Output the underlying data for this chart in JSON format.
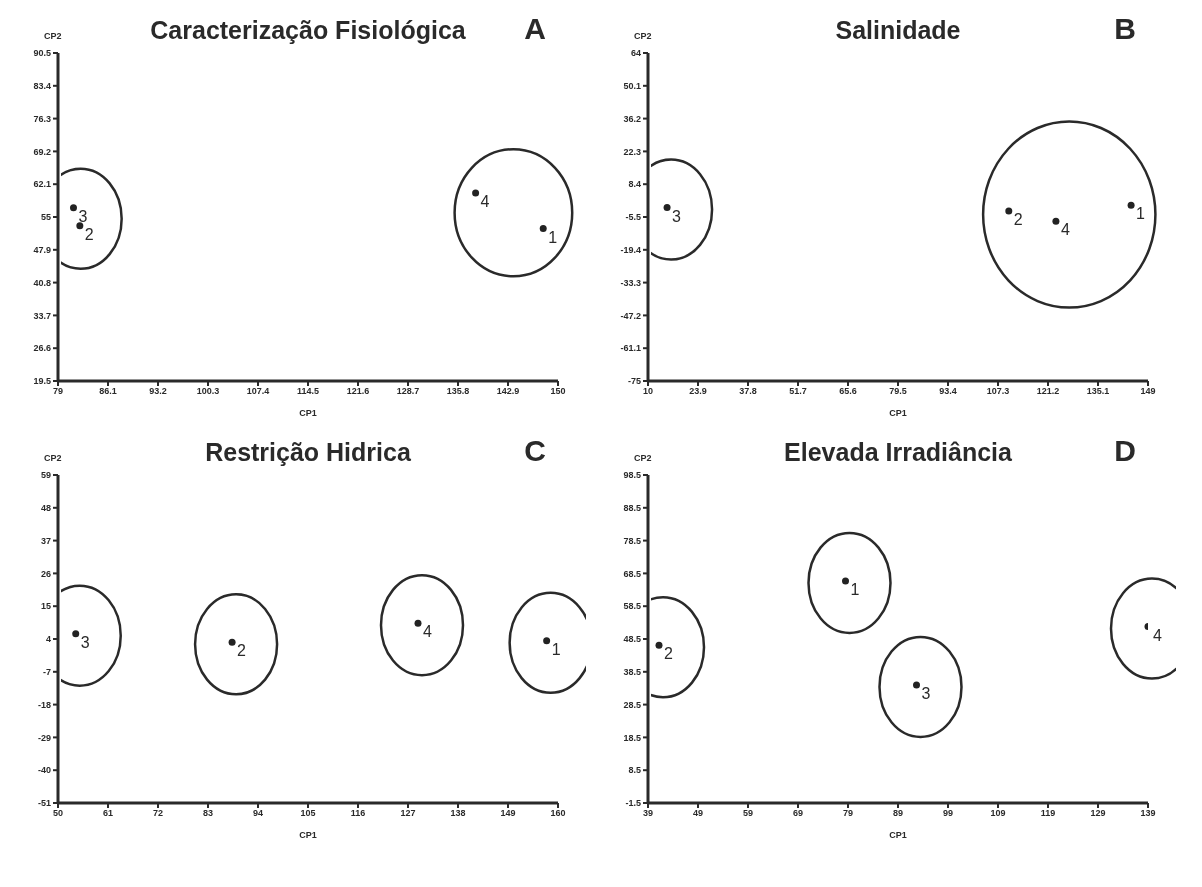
{
  "chart_data": [
    {
      "type": "scatter",
      "title": "Caracterização Fisiológica",
      "xlabel": "CP1",
      "ylabel": "CP2",
      "xlim": [
        79,
        150
      ],
      "xticks": [
        79,
        86.1,
        93.2,
        100.3,
        107.4,
        114.5,
        121.6,
        128.7,
        135.8,
        142.9,
        150
      ],
      "ylim": [
        19.5,
        90.5
      ],
      "yticks": [
        19.5,
        26.6,
        33.7,
        40.8,
        47.9,
        55,
        62.1,
        69.2,
        76.3,
        83.4,
        90.5
      ],
      "grid": false,
      "legend": false,
      "marker": "circle",
      "annotations": [
        "A",
        {
          "text": "3",
          "x": 81.2,
          "y": 57.0
        },
        {
          "text": "2",
          "x": 82.1,
          "y": 53.1
        },
        {
          "text": "4",
          "x": 138.3,
          "y": 60.2
        },
        {
          "text": "1",
          "x": 147.9,
          "y": 52.5
        }
      ],
      "series": [
        {
          "color": "#222222",
          "x": [
            81.2,
            82.1
          ],
          "values": [
            57.0,
            53.1
          ]
        },
        {
          "color": "#222222",
          "x": [
            138.3,
            147.9
          ],
          "values": [
            60.2,
            52.5
          ]
        }
      ]
    },
    {
      "type": "scatter",
      "title": "Salinidade",
      "xlabel": "CP1",
      "ylabel": "CP2",
      "xlim": [
        10,
        149
      ],
      "xticks": [
        10,
        23.9,
        37.8,
        51.7,
        65.6,
        79.5,
        93.4,
        107.3,
        121.2,
        135.1,
        149
      ],
      "ylim": [
        -75,
        64
      ],
      "yticks": [
        -75,
        -61.1,
        -47.2,
        -33.3,
        -19.4,
        -5.5,
        8.4,
        22.3,
        36.2,
        50.1,
        64
      ],
      "grid": false,
      "legend": false,
      "marker": "circle",
      "annotations": [
        "B",
        {
          "text": "3",
          "x": 15.3,
          "y": -1.5
        },
        {
          "text": "2",
          "x": 110.3,
          "y": -3.0
        },
        {
          "text": "4",
          "x": 123.4,
          "y": -7.3
        },
        {
          "text": "1",
          "x": 144.3,
          "y": -0.5
        }
      ],
      "series": [
        {
          "color": "#222222",
          "x": [
            15.3
          ],
          "values": [
            -1.5
          ]
        },
        {
          "color": "#222222",
          "x": [
            110.3,
            123.4,
            144.3
          ],
          "values": [
            -3.0,
            -7.3,
            -0.5
          ]
        }
      ]
    },
    {
      "type": "scatter",
      "title": "Restrição Hidrica",
      "xlabel": "CP1",
      "ylabel": "CP2",
      "xlim": [
        50,
        160
      ],
      "xticks": [
        50,
        61,
        72,
        83,
        94,
        105,
        116,
        127,
        138,
        149,
        160
      ],
      "ylim": [
        -51,
        59
      ],
      "yticks": [
        -51,
        -40,
        -29,
        -18,
        -7,
        4,
        15,
        26,
        37,
        48,
        59
      ],
      "grid": false,
      "legend": false,
      "marker": "circle",
      "annotations": [
        "C",
        {
          "text": "3",
          "x": 53.9,
          "y": 5.8
        },
        {
          "text": "2",
          "x": 88.3,
          "y": 2.9
        },
        {
          "text": "4",
          "x": 129.2,
          "y": 9.3
        },
        {
          "text": "1",
          "x": 157.5,
          "y": 3.4
        }
      ],
      "series": [
        {
          "color": "#222222",
          "x": [
            53.9
          ],
          "values": [
            5.8
          ]
        },
        {
          "color": "#222222",
          "x": [
            88.3
          ],
          "values": [
            2.9
          ]
        },
        {
          "color": "#222222",
          "x": [
            129.2
          ],
          "values": [
            9.3
          ]
        },
        {
          "color": "#222222",
          "x": [
            157.5
          ],
          "values": [
            3.4
          ]
        }
      ]
    },
    {
      "type": "scatter",
      "title": "Elevada Irradiância",
      "xlabel": "CP1",
      "ylabel": "CP2",
      "xlim": [
        39,
        139
      ],
      "xticks": [
        39,
        49,
        59,
        69,
        79,
        89,
        99,
        109,
        119,
        129,
        139
      ],
      "ylim": [
        -1.5,
        98.5
      ],
      "yticks": [
        -1.5,
        8.5,
        18.5,
        28.5,
        38.5,
        48.5,
        58.5,
        68.5,
        78.5,
        88.5,
        98.5
      ],
      "grid": false,
      "legend": false,
      "marker": "circle",
      "annotations": [
        "D",
        {
          "text": "1",
          "x": 78.5,
          "y": 66.2
        },
        {
          "text": "2",
          "x": 41.2,
          "y": 46.6
        },
        {
          "text": "3",
          "x": 92.7,
          "y": 34.5
        },
        {
          "text": "4",
          "x": 139,
          "y": 52.3
        }
      ],
      "series": [
        {
          "color": "#222222",
          "x": [
            78.5
          ],
          "values": [
            66.2
          ]
        },
        {
          "color": "#222222",
          "x": [
            41.2
          ],
          "values": [
            46.6
          ]
        },
        {
          "color": "#222222",
          "x": [
            92.7
          ],
          "values": [
            34.5
          ]
        },
        {
          "color": "#222222",
          "x": [
            139
          ],
          "values": [
            52.3
          ]
        }
      ]
    }
  ]
}
